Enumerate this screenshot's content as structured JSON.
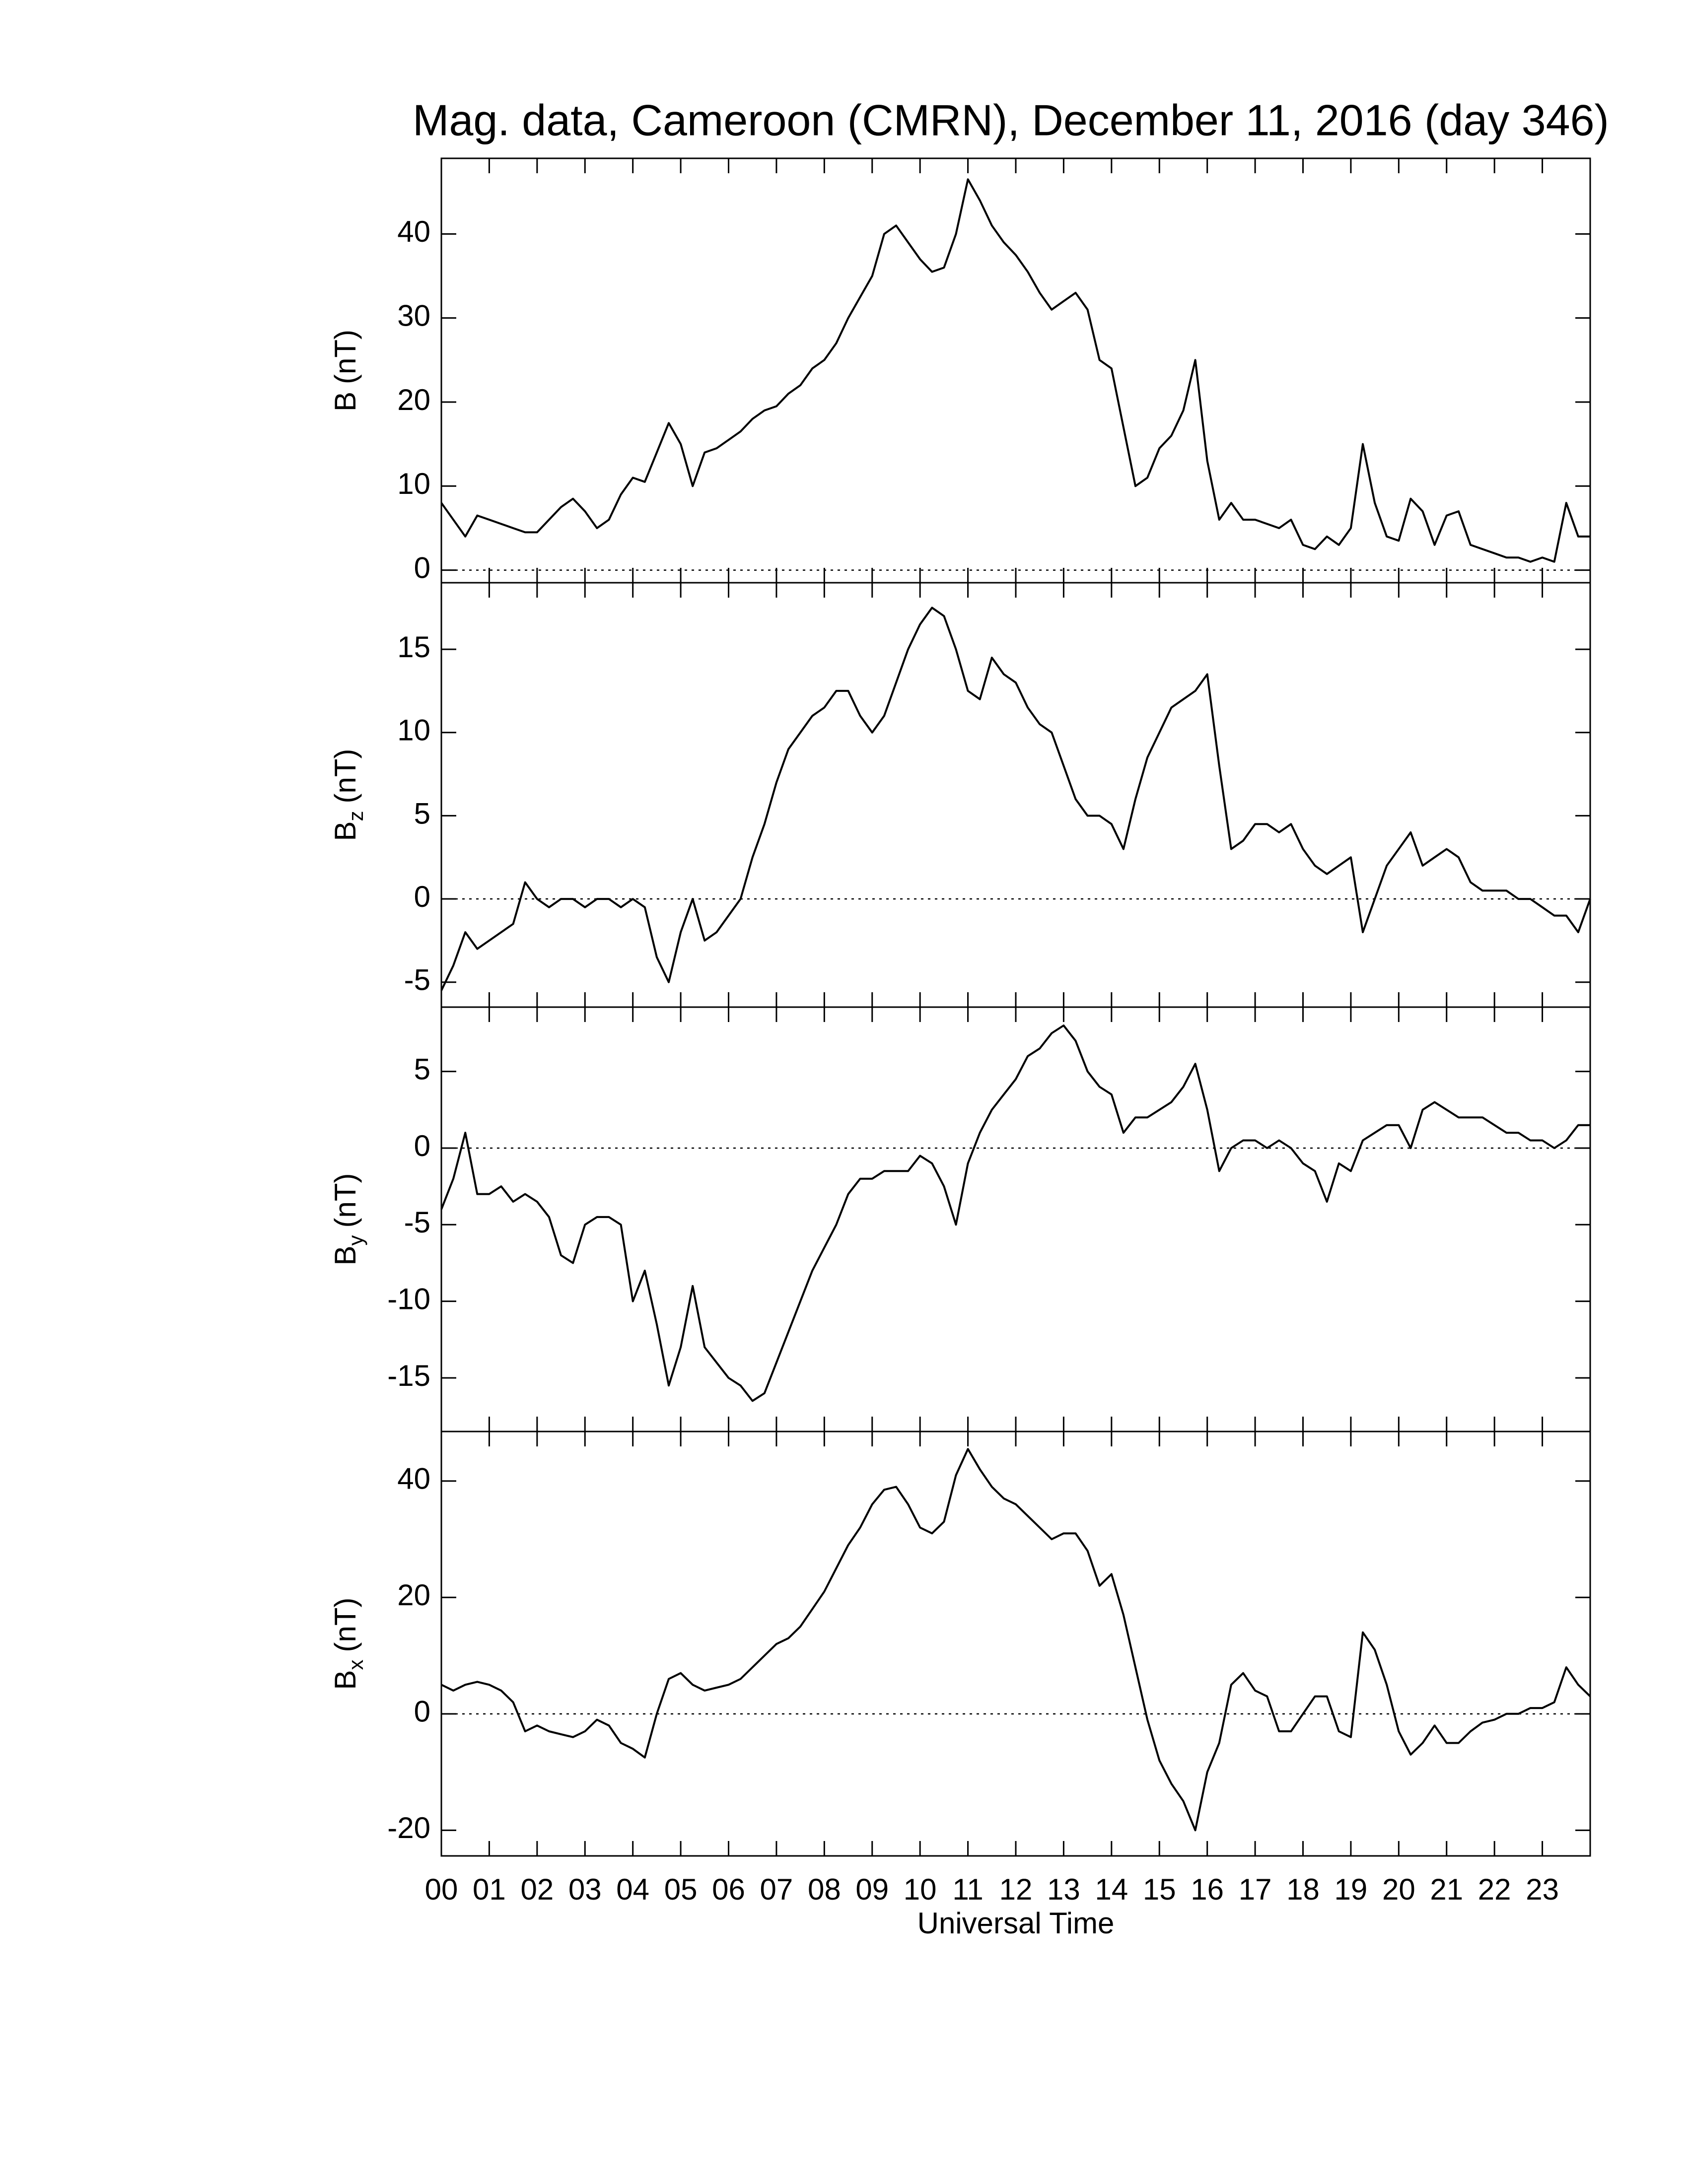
{
  "chart_data": [
    {
      "type": "line",
      "title": "Mag. data, Cameroon (CMRN), December 11, 2016 (day 346)",
      "ylabel": "B",
      "ylabel_unit": "(nT)",
      "color": "#000000",
      "xlim": [
        0,
        24
      ],
      "ylim": [
        -1.5,
        49
      ],
      "yticks": [
        0,
        10,
        20,
        30,
        40
      ],
      "hlines": [
        0
      ],
      "x": [
        0,
        0.25,
        0.5,
        0.75,
        1,
        1.25,
        1.5,
        1.75,
        2,
        2.25,
        2.5,
        2.75,
        3,
        3.25,
        3.5,
        3.75,
        4,
        4.25,
        4.5,
        4.75,
        5,
        5.25,
        5.5,
        5.75,
        6,
        6.25,
        6.5,
        6.75,
        7,
        7.25,
        7.5,
        7.75,
        8,
        8.25,
        8.5,
        8.75,
        9,
        9.25,
        9.5,
        9.75,
        10,
        10.25,
        10.5,
        10.75,
        11,
        11.25,
        11.5,
        11.75,
        12,
        12.25,
        12.5,
        12.75,
        13,
        13.25,
        13.5,
        13.75,
        14,
        14.25,
        14.5,
        14.75,
        15,
        15.25,
        15.5,
        15.75,
        16,
        16.25,
        16.5,
        16.75,
        17,
        17.25,
        17.5,
        17.75,
        18,
        18.25,
        18.5,
        18.75,
        19,
        19.25,
        19.5,
        19.75,
        20,
        20.25,
        20.5,
        20.75,
        21,
        21.25,
        21.5,
        21.75,
        22,
        22.25,
        22.5,
        22.75,
        23,
        23.25,
        23.5,
        23.75,
        24
      ],
      "values": [
        8,
        6,
        4,
        6.5,
        6,
        5.5,
        5,
        4.5,
        4.5,
        6,
        7.5,
        8.5,
        7,
        5,
        6,
        9,
        11,
        10.5,
        14,
        17.5,
        15,
        10,
        14,
        14.5,
        15.5,
        16.5,
        18,
        19,
        19.5,
        21,
        22,
        24,
        25,
        27,
        30,
        32.5,
        35,
        40,
        41,
        39,
        37,
        35.5,
        36,
        40,
        46.5,
        44,
        41,
        39,
        37.5,
        35.5,
        33,
        31,
        32,
        33,
        31,
        25,
        24,
        17,
        10,
        11,
        14.5,
        16,
        19,
        25,
        13,
        6,
        8,
        6,
        6,
        5.5,
        5,
        6,
        3,
        2.5,
        4,
        3,
        5,
        15,
        8,
        4,
        3.5,
        8.5,
        7,
        3,
        6.5,
        7,
        3,
        2.5,
        2,
        1.5,
        1.5,
        1,
        1.5,
        1,
        8,
        4,
        4
      ]
    },
    {
      "type": "line",
      "ylabel": "B",
      "ylabel_subscript": "z",
      "ylabel_unit": "(nT)",
      "color": "#000000",
      "xlim": [
        0,
        24
      ],
      "ylim": [
        -6.5,
        19
      ],
      "yticks": [
        -5,
        0,
        5,
        10,
        15
      ],
      "hlines": [
        0
      ],
      "x": [
        0,
        0.25,
        0.5,
        0.75,
        1,
        1.25,
        1.5,
        1.75,
        2,
        2.25,
        2.5,
        2.75,
        3,
        3.25,
        3.5,
        3.75,
        4,
        4.25,
        4.5,
        4.75,
        5,
        5.25,
        5.5,
        5.75,
        6,
        6.25,
        6.5,
        6.75,
        7,
        7.25,
        7.5,
        7.75,
        8,
        8.25,
        8.5,
        8.75,
        9,
        9.25,
        9.5,
        9.75,
        10,
        10.25,
        10.5,
        10.75,
        11,
        11.25,
        11.5,
        11.75,
        12,
        12.25,
        12.5,
        12.75,
        13,
        13.25,
        13.5,
        13.75,
        14,
        14.25,
        14.5,
        14.75,
        15,
        15.25,
        15.5,
        15.75,
        16,
        16.25,
        16.5,
        16.75,
        17,
        17.25,
        17.5,
        17.75,
        18,
        18.25,
        18.5,
        18.75,
        19,
        19.25,
        19.5,
        19.75,
        20,
        20.25,
        20.5,
        20.75,
        21,
        21.25,
        21.5,
        21.75,
        22,
        22.25,
        22.5,
        22.75,
        23,
        23.25,
        23.5,
        23.75,
        24
      ],
      "values": [
        -5.5,
        -4,
        -2,
        -3,
        -2.5,
        -2,
        -1.5,
        1,
        0,
        -0.5,
        0,
        0,
        -0.5,
        0,
        0,
        -0.5,
        0,
        -0.5,
        -3.5,
        -5,
        -2,
        0,
        -2.5,
        -2,
        -1,
        0,
        2.5,
        4.5,
        7,
        9,
        10,
        11,
        11.5,
        12.5,
        12.5,
        11,
        10,
        11,
        13,
        15,
        16.5,
        17.5,
        17,
        15,
        12.5,
        12,
        14.5,
        13.5,
        13,
        11.5,
        10.5,
        10,
        8,
        6,
        5,
        5,
        4.5,
        3,
        6,
        8.5,
        10,
        11.5,
        12,
        12.5,
        13.5,
        8,
        3,
        3.5,
        4.5,
        4.5,
        4,
        4.5,
        3,
        2,
        1.5,
        2,
        2.5,
        -2,
        0,
        2,
        3,
        4,
        2,
        2.5,
        3,
        2.5,
        1,
        0.5,
        0.5,
        0.5,
        0,
        0,
        -0.5,
        -1,
        -1,
        -2,
        0
      ]
    },
    {
      "type": "line",
      "ylabel": "B",
      "ylabel_subscript": "y",
      "ylabel_unit": "(nT)",
      "color": "#000000",
      "xlim": [
        0,
        24
      ],
      "ylim": [
        -18.5,
        9.2
      ],
      "yticks": [
        -15,
        -10,
        -5,
        0,
        5
      ],
      "hlines": [
        0
      ],
      "x": [
        0,
        0.25,
        0.5,
        0.75,
        1,
        1.25,
        1.5,
        1.75,
        2,
        2.25,
        2.5,
        2.75,
        3,
        3.25,
        3.5,
        3.75,
        4,
        4.25,
        4.5,
        4.75,
        5,
        5.25,
        5.5,
        5.75,
        6,
        6.25,
        6.5,
        6.75,
        7,
        7.25,
        7.5,
        7.75,
        8,
        8.25,
        8.5,
        8.75,
        9,
        9.25,
        9.5,
        9.75,
        10,
        10.25,
        10.5,
        10.75,
        11,
        11.25,
        11.5,
        11.75,
        12,
        12.25,
        12.5,
        12.75,
        13,
        13.25,
        13.5,
        13.75,
        14,
        14.25,
        14.5,
        14.75,
        15,
        15.25,
        15.5,
        15.75,
        16,
        16.25,
        16.5,
        16.75,
        17,
        17.25,
        17.5,
        17.75,
        18,
        18.25,
        18.5,
        18.75,
        19,
        19.25,
        19.5,
        19.75,
        20,
        20.25,
        20.5,
        20.75,
        21,
        21.25,
        21.5,
        21.75,
        22,
        22.25,
        22.5,
        22.75,
        23,
        23.25,
        23.5,
        23.75,
        24
      ],
      "values": [
        -4,
        -2,
        1,
        -3,
        -3,
        -2.5,
        -3.5,
        -3,
        -3.5,
        -4.5,
        -7,
        -7.5,
        -5,
        -4.5,
        -4.5,
        -5,
        -10,
        -8,
        -11.5,
        -15.5,
        -13,
        -9,
        -13,
        -14,
        -15,
        -15.5,
        -16.5,
        -16,
        -14,
        -12,
        -10,
        -8,
        -6.5,
        -5,
        -3,
        -2,
        -2,
        -1.5,
        -1.5,
        -1.5,
        -0.5,
        -1,
        -2.5,
        -5,
        -1,
        1,
        2.5,
        3.5,
        4.5,
        6,
        6.5,
        7.5,
        8,
        7,
        5,
        4,
        3.5,
        1,
        2,
        2,
        2.5,
        3,
        4,
        5.5,
        2.5,
        -1.5,
        0,
        0.5,
        0.5,
        0,
        0.5,
        0,
        -1,
        -1.5,
        -3.5,
        -1,
        -1.5,
        0.5,
        1,
        1.5,
        1.5,
        0,
        2.5,
        3,
        2.5,
        2,
        2,
        2,
        1.5,
        1,
        1,
        0.5,
        0.5,
        0,
        0.5,
        1.5,
        1.5
      ]
    },
    {
      "type": "line",
      "ylabel": "B",
      "ylabel_subscript": "x",
      "ylabel_unit": "(nT)",
      "xlabel": "Universal Time",
      "color": "#000000",
      "xlim": [
        0,
        24
      ],
      "ylim": [
        -24.4,
        48.5
      ],
      "yticks": [
        -20,
        0,
        20,
        40
      ],
      "hlines": [
        0
      ],
      "xticks": [
        {
          "value": 0,
          "label": "00"
        },
        {
          "value": 1,
          "label": "01"
        },
        {
          "value": 2,
          "label": "02"
        },
        {
          "value": 3,
          "label": "03"
        },
        {
          "value": 4,
          "label": "04"
        },
        {
          "value": 5,
          "label": "05"
        },
        {
          "value": 6,
          "label": "06"
        },
        {
          "value": 7,
          "label": "07"
        },
        {
          "value": 8,
          "label": "08"
        },
        {
          "value": 9,
          "label": "09"
        },
        10,
        11,
        12,
        13,
        14,
        15,
        16,
        17,
        18,
        19,
        20,
        21,
        22,
        23
      ],
      "x": [
        0,
        0.25,
        0.5,
        0.75,
        1,
        1.25,
        1.5,
        1.75,
        2,
        2.25,
        2.5,
        2.75,
        3,
        3.25,
        3.5,
        3.75,
        4,
        4.25,
        4.5,
        4.75,
        5,
        5.25,
        5.5,
        5.75,
        6,
        6.25,
        6.5,
        6.75,
        7,
        7.25,
        7.5,
        7.75,
        8,
        8.25,
        8.5,
        8.75,
        9,
        9.25,
        9.5,
        9.75,
        10,
        10.25,
        10.5,
        10.75,
        11,
        11.25,
        11.5,
        11.75,
        12,
        12.25,
        12.5,
        12.75,
        13,
        13.25,
        13.5,
        13.75,
        14,
        14.25,
        14.5,
        14.75,
        15,
        15.25,
        15.5,
        15.75,
        16,
        16.25,
        16.5,
        16.75,
        17,
        17.25,
        17.5,
        17.75,
        18,
        18.25,
        18.5,
        18.75,
        19,
        19.25,
        19.5,
        19.75,
        20,
        20.25,
        20.5,
        20.75,
        21,
        21.25,
        21.5,
        21.75,
        22,
        22.25,
        22.5,
        22.75,
        23,
        23.25,
        23.5,
        23.75,
        24
      ],
      "values": [
        5,
        4,
        5,
        5.5,
        5,
        4,
        2,
        -3,
        -2,
        -3,
        -3.5,
        -4,
        -3,
        -1,
        -2,
        -5,
        -6,
        -7.5,
        0,
        6,
        7,
        5,
        4,
        4.5,
        5,
        6,
        8,
        10,
        12,
        13,
        15,
        18,
        21,
        25,
        29,
        32,
        36,
        38.5,
        39,
        36,
        32,
        31,
        33,
        41,
        45.5,
        42,
        39,
        37,
        36,
        34,
        32,
        30,
        31,
        31,
        28,
        22,
        24,
        17,
        8,
        -1,
        -8,
        -12,
        -15,
        -20,
        -10,
        -5,
        5,
        7,
        4,
        3,
        -3,
        -3,
        0,
        3,
        3,
        -3,
        -4,
        14,
        11,
        5,
        -3,
        -7,
        -5,
        -2,
        -5,
        -5,
        -3,
        -1.5,
        -1,
        0,
        0,
        1,
        1,
        2,
        8,
        5,
        3
      ]
    }
  ]
}
